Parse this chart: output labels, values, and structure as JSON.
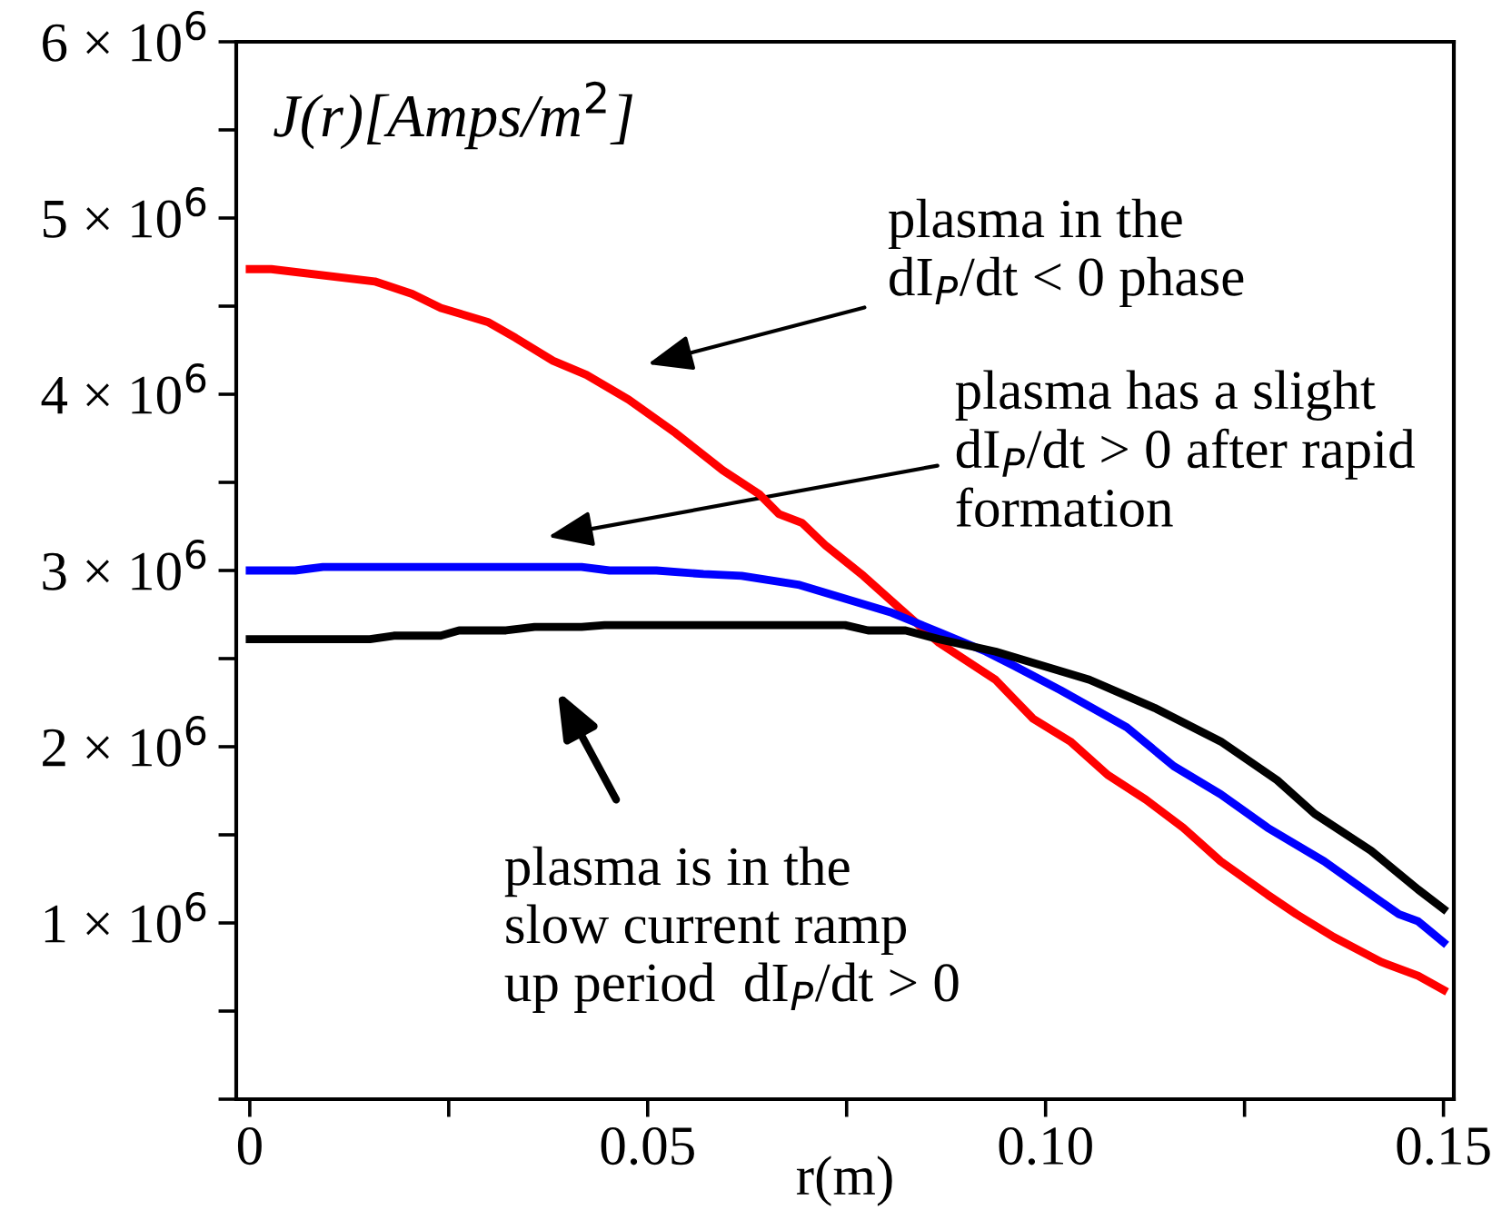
{
  "chart_data": {
    "type": "line",
    "xlabel": "r(m)",
    "ylabel": "J(r)[Amps/m$^{2}$]",
    "xlim": [
      -0.0017,
      0.1513
    ],
    "ylim": [
      0,
      6000000
    ],
    "xticks": [
      0,
      {
        "value": 0.025,
        "label": null
      },
      0.05,
      {
        "value": 0.075,
        "label": null
      },
      {
        "value": 0.1,
        "label": "0.10"
      },
      {
        "value": 0.125,
        "label": null
      },
      0.15
    ],
    "yticks": [
      {
        "value": 0,
        "label": null
      },
      {
        "value": 500000,
        "label": null
      },
      {
        "value": 1000000,
        "label": "1 × 10$^{6}$"
      },
      {
        "value": 1500000,
        "label": null
      },
      {
        "value": 2000000,
        "label": "2 × 10$^{6}$"
      },
      {
        "value": 2500000,
        "label": null
      },
      {
        "value": 3000000,
        "label": "3 × 10$^{6}$"
      },
      {
        "value": 3500000,
        "label": null
      },
      {
        "value": 4000000,
        "label": "4 × 10$^{6}$"
      },
      {
        "value": 4500000,
        "label": null
      },
      {
        "value": 5000000,
        "label": "5 × 10$^{6}$"
      },
      {
        "value": 5500000,
        "label": null
      },
      {
        "value": 6000000,
        "label": "6 × 10$^{6}$"
      }
    ],
    "grid": false,
    "legend": false,
    "marker": "none",
    "line_style": "solid",
    "series": [
      {
        "color": "#ff0000",
        "x": [
          0,
          0.0027,
          0.0157,
          0.0204,
          0.024,
          0.0299,
          0.0334,
          0.0381,
          0.0423,
          0.0476,
          0.0535,
          0.0594,
          0.0641,
          0.0665,
          0.0694,
          0.0724,
          0.0771,
          0.0818,
          0.0866,
          0.0937,
          0.0984,
          0.1031,
          0.1078,
          0.1126,
          0.1173,
          0.122,
          0.1279,
          0.1315,
          0.1362,
          0.1421,
          0.1468,
          0.15
        ],
        "values": [
          4710000,
          4710000,
          4640000,
          4570000,
          4490000,
          4410000,
          4320000,
          4190000,
          4110000,
          3970000,
          3780000,
          3570000,
          3430000,
          3320000,
          3270000,
          3140000,
          2970000,
          2780000,
          2590000,
          2380000,
          2160000,
          2030000,
          1840000,
          1700000,
          1540000,
          1350000,
          1160000,
          1050000,
          920000,
          780000,
          700000,
          620000
        ]
      },
      {
        "color": "#0000ff",
        "x": [
          0,
          0.0057,
          0.0092,
          0.0417,
          0.0452,
          0.0511,
          0.057,
          0.0618,
          0.0689,
          0.0748,
          0.0807,
          0.0866,
          0.0925,
          0.096,
          0.1019,
          0.1102,
          0.1161,
          0.122,
          0.1279,
          0.135,
          0.1409,
          0.1444,
          0.1468,
          0.15
        ],
        "values": [
          3000000,
          3000000,
          3020000,
          3020000,
          3000000,
          3000000,
          2980000,
          2970000,
          2920000,
          2840000,
          2760000,
          2650000,
          2540000,
          2460000,
          2320000,
          2110000,
          1890000,
          1730000,
          1540000,
          1350000,
          1160000,
          1050000,
          1010000,
          890000
        ]
      },
      {
        "color": "#000000",
        "x": [
          0,
          0.0151,
          0.0181,
          0.024,
          0.0263,
          0.0322,
          0.0358,
          0.0417,
          0.0446,
          0.0748,
          0.0777,
          0.0824,
          0.0866,
          0.0937,
          0.0996,
          0.1055,
          0.1137,
          0.122,
          0.1291,
          0.1338,
          0.1409,
          0.1468,
          0.15
        ],
        "values": [
          2610000,
          2610000,
          2630000,
          2630000,
          2660000,
          2660000,
          2680000,
          2680000,
          2690000,
          2690000,
          2660000,
          2660000,
          2610000,
          2540000,
          2460000,
          2380000,
          2220000,
          2030000,
          1810000,
          1620000,
          1410000,
          1190000,
          1080000
        ]
      }
    ],
    "annotations": [
      "plasma in the\ndI$_{P}$/dt < 0 phase",
      "plasma has a slight\ndI$_{P}$/dt > 0 after rapid\nformation",
      "plasma is in the\nslow current ramp\nup period  dI$_{P}$/dt > 0"
    ]
  }
}
